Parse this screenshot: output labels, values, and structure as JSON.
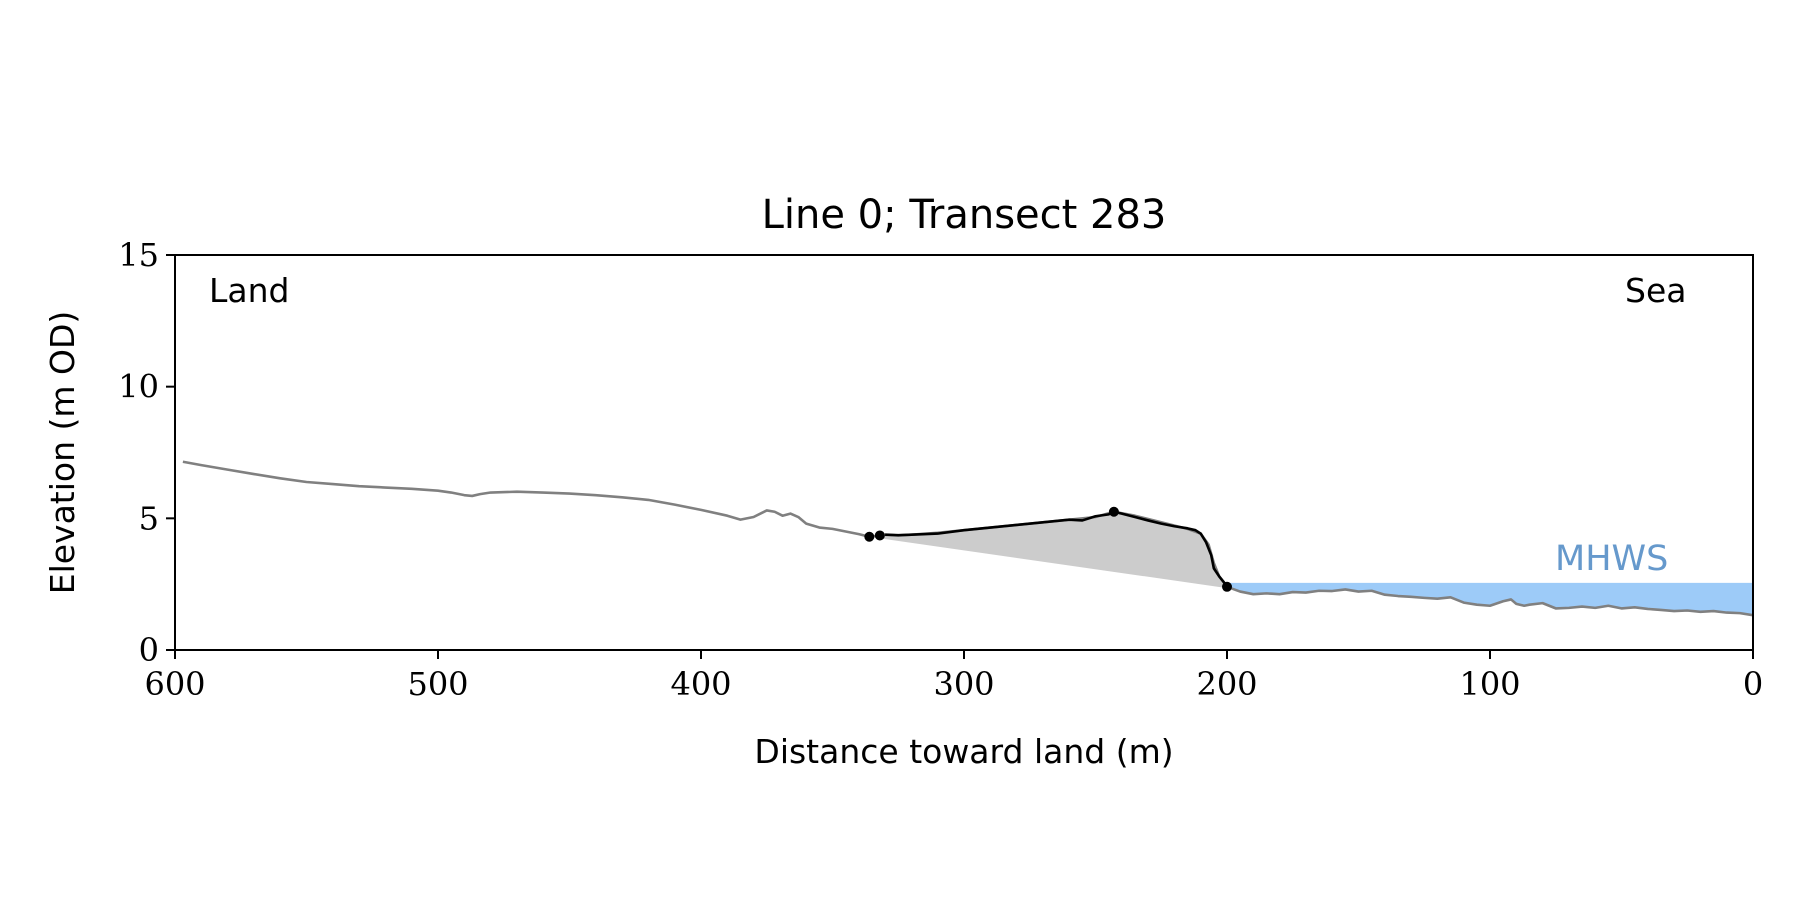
{
  "chart_data": {
    "type": "line",
    "title": "Line 0; Transect 283",
    "xlabel": "Distance toward land (m)",
    "ylabel": "Elevation (m OD)",
    "xlim": [
      600,
      0
    ],
    "ylim": [
      0,
      15
    ],
    "x_ticks": [
      600,
      500,
      400,
      300,
      200,
      100,
      0
    ],
    "y_ticks": [
      0,
      5,
      10,
      15
    ],
    "annotations": {
      "land": "Land",
      "sea": "Sea",
      "mhws": "MHWS"
    },
    "mhws_level": 2.55,
    "colors": {
      "profile": "#808080",
      "dune": "#000000",
      "dune_fill": "#cccccc",
      "water_fill": "#9dcbf8",
      "mhws_text": "#6699cc",
      "axis": "#000000"
    },
    "profile": {
      "x": [
        597,
        590,
        580,
        570,
        560,
        550,
        540,
        530,
        520,
        510,
        500,
        495,
        490,
        487,
        484,
        480,
        470,
        460,
        450,
        440,
        430,
        420,
        410,
        400,
        390,
        385,
        380,
        377,
        375,
        372,
        369,
        366,
        363,
        360,
        355,
        350,
        345,
        340,
        336,
        330,
        325,
        320,
        310,
        300,
        290,
        280,
        270,
        260,
        250,
        243,
        235,
        225,
        215,
        210,
        207,
        205,
        203,
        200,
        195,
        190,
        185,
        180,
        175,
        170,
        165,
        160,
        155,
        150,
        145,
        140,
        135,
        130,
        125,
        120,
        115,
        110,
        105,
        100,
        95,
        92,
        90,
        87,
        85,
        80,
        75,
        70,
        65,
        60,
        55,
        50,
        45,
        40,
        35,
        30,
        25,
        20,
        15,
        10,
        5,
        0
      ],
      "y": [
        7.15,
        7.02,
        6.85,
        6.68,
        6.52,
        6.38,
        6.3,
        6.22,
        6.17,
        6.12,
        6.05,
        5.98,
        5.88,
        5.85,
        5.92,
        5.98,
        6.01,
        5.98,
        5.94,
        5.88,
        5.8,
        5.7,
        5.52,
        5.32,
        5.1,
        4.95,
        5.05,
        5.2,
        5.3,
        5.25,
        5.1,
        5.18,
        5.05,
        4.8,
        4.65,
        4.6,
        4.5,
        4.4,
        4.3,
        4.38,
        4.35,
        4.38,
        4.45,
        4.55,
        4.65,
        4.75,
        4.85,
        4.95,
        5.05,
        5.25,
        5.1,
        4.85,
        4.6,
        4.42,
        4.0,
        3.3,
        2.8,
        2.4,
        2.22,
        2.12,
        2.15,
        2.12,
        2.2,
        2.18,
        2.25,
        2.24,
        2.3,
        2.22,
        2.25,
        2.1,
        2.05,
        2.02,
        1.98,
        1.95,
        2.0,
        1.8,
        1.72,
        1.68,
        1.85,
        1.92,
        1.75,
        1.68,
        1.72,
        1.78,
        1.58,
        1.6,
        1.65,
        1.6,
        1.68,
        1.58,
        1.62,
        1.56,
        1.52,
        1.48,
        1.5,
        1.45,
        1.48,
        1.42,
        1.4,
        1.32
      ]
    },
    "dune_crest": {
      "x": [
        330,
        325,
        320,
        310,
        300,
        290,
        280,
        270,
        260,
        255,
        250,
        245,
        243,
        240,
        235,
        230,
        225,
        220,
        215,
        212,
        210,
        208,
        206,
        205,
        203,
        201,
        200
      ],
      "y": [
        4.38,
        4.36,
        4.38,
        4.42,
        4.55,
        4.65,
        4.75,
        4.85,
        4.95,
        4.92,
        5.08,
        5.15,
        5.25,
        5.18,
        5.05,
        4.92,
        4.8,
        4.7,
        4.62,
        4.55,
        4.42,
        4.1,
        3.6,
        3.1,
        2.8,
        2.55,
        2.4
      ]
    },
    "dune_toe_line": {
      "x": [
        336,
        200
      ],
      "y": [
        4.3,
        2.35
      ]
    },
    "markers": {
      "x": [
        336,
        332,
        243,
        200
      ],
      "y": [
        4.3,
        4.35,
        5.25,
        2.4
      ]
    }
  }
}
